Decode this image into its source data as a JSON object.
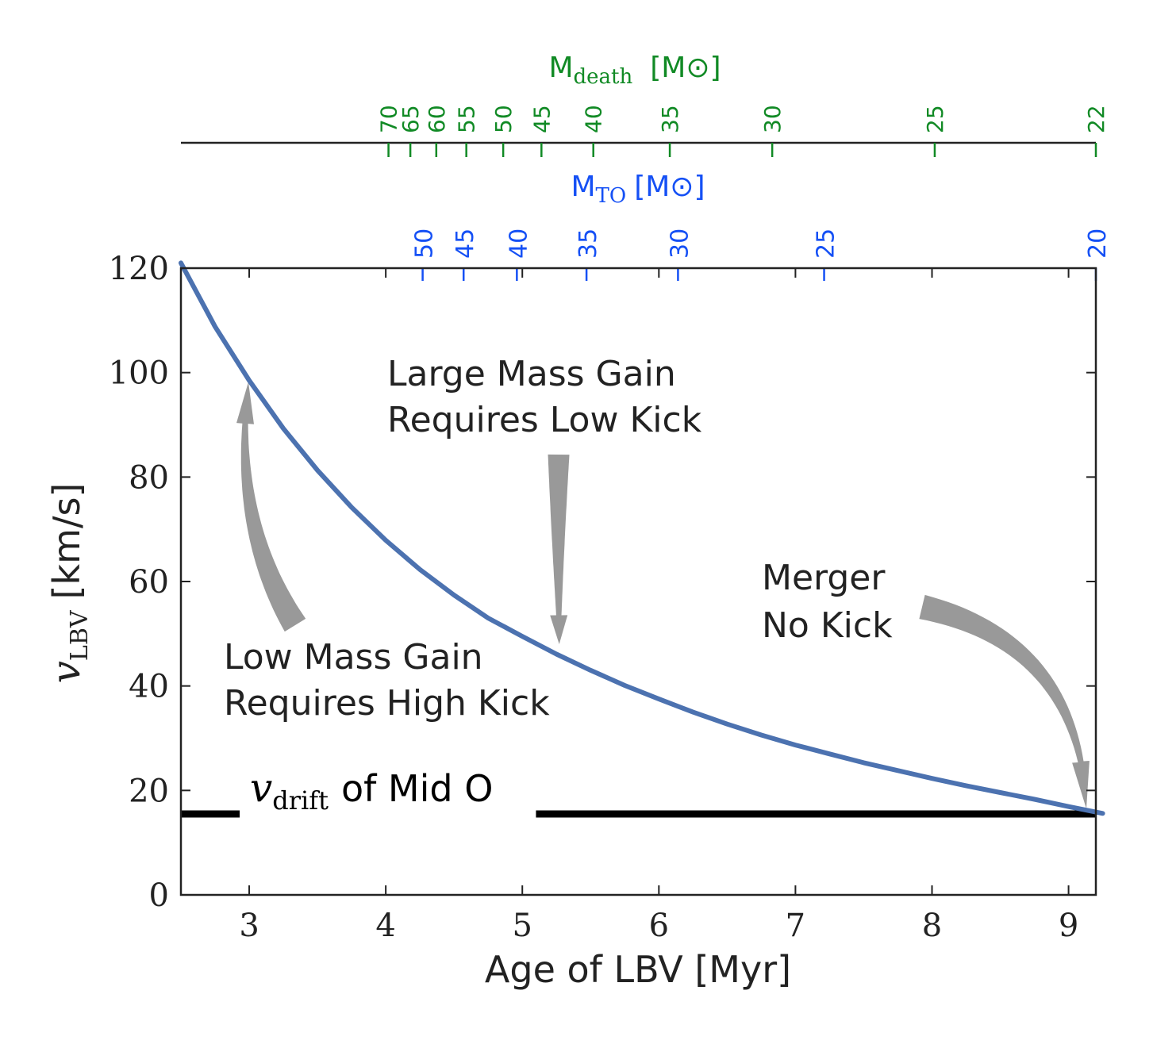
{
  "chart_data": {
    "type": "line",
    "xlabel": "Age of LBV [Myr]",
    "ylabel": {
      "symbol": "v",
      "subscript": "LBV",
      "units": "[km/s]"
    },
    "xlim": [
      2.5,
      9.2
    ],
    "ylim": [
      0,
      120
    ],
    "x_ticks": [
      3,
      4,
      5,
      6,
      7,
      8,
      9
    ],
    "y_ticks": [
      0,
      20,
      40,
      60,
      80,
      100,
      120
    ],
    "series": [
      {
        "name": "v_LBV",
        "color": "#4c72b0",
        "x": [
          2.5,
          2.75,
          3.0,
          3.25,
          3.5,
          3.75,
          4.0,
          4.25,
          4.5,
          4.75,
          5.0,
          5.25,
          5.5,
          5.75,
          6.0,
          6.25,
          6.5,
          6.75,
          7.0,
          7.25,
          7.5,
          7.75,
          8.0,
          8.25,
          8.5,
          8.75,
          9.0,
          9.25
        ],
        "y": [
          121.0,
          108.8,
          98.5,
          89.3,
          81.3,
          74.2,
          67.9,
          62.3,
          57.4,
          53.0,
          49.5,
          46.1,
          43.0,
          40.1,
          37.5,
          35.0,
          32.7,
          30.6,
          28.7,
          27.0,
          25.3,
          23.8,
          22.3,
          20.9,
          19.6,
          18.3,
          16.9,
          15.6
        ]
      }
    ],
    "reference_line": {
      "name": "v_drift of Mid O",
      "y": 15.5,
      "color": "#000000",
      "label_symbol": "v",
      "label_subscript": "drift",
      "label_text": "of Mid O",
      "gap_x": [
        2.93,
        5.1
      ]
    },
    "top_axis_mto": {
      "label": "M",
      "subscript": "TO",
      "units": "[M⊙]",
      "color": "#1550f5",
      "ticks": [
        {
          "label": "50",
          "x": 4.27
        },
        {
          "label": "45",
          "x": 4.57
        },
        {
          "label": "40",
          "x": 4.96
        },
        {
          "label": "35",
          "x": 5.47
        },
        {
          "label": "30",
          "x": 6.14
        },
        {
          "label": "25",
          "x": 7.21
        },
        {
          "label": "20",
          "x": 9.2
        }
      ]
    },
    "top_axis_mdeath": {
      "label": "M",
      "subscript": "death",
      "units": "[M⊙]",
      "color": "#118a25",
      "ticks": [
        {
          "label": "70",
          "x": 4.02
        },
        {
          "label": "65",
          "x": 4.18
        },
        {
          "label": "60",
          "x": 4.37
        },
        {
          "label": "55",
          "x": 4.59
        },
        {
          "label": "50",
          "x": 4.86
        },
        {
          "label": "45",
          "x": 5.14
        },
        {
          "label": "40",
          "x": 5.52
        },
        {
          "label": "35",
          "x": 6.08
        },
        {
          "label": "30",
          "x": 6.83
        },
        {
          "label": "25",
          "x": 8.02
        },
        {
          "label": "22",
          "x": 9.2
        }
      ]
    },
    "annotations": [
      {
        "id": "low-mass-gain",
        "lines": [
          "Low Mass Gain",
          "Requires High Kick"
        ],
        "arrow_to": [
          3.0,
          98.5
        ]
      },
      {
        "id": "large-mass-gain",
        "lines": [
          "Large Mass Gain",
          "Requires Low Kick"
        ],
        "arrow_to": [
          5.27,
          48.0
        ]
      },
      {
        "id": "merger",
        "lines": [
          "Merger",
          "No Kick"
        ],
        "arrow_to": [
          9.13,
          16.2
        ]
      }
    ]
  }
}
